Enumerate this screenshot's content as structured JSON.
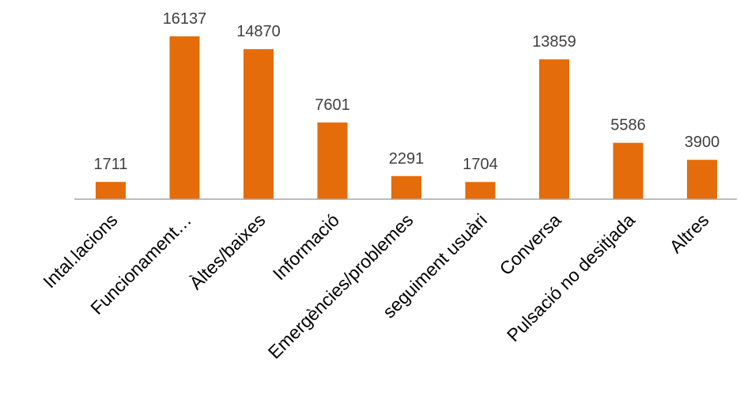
{
  "chart_data": {
    "type": "bar",
    "title": "",
    "xlabel": "",
    "ylabel": "",
    "categories": [
      "Intal.lacions",
      "Funcionament…",
      "Àltes/baixes",
      "Informació",
      "Emergències/problemes",
      "seguiment usuàri",
      "Conversa",
      "Pulsació no desitjada",
      "Altres"
    ],
    "values": [
      1711,
      16137,
      14870,
      7601,
      2291,
      1704,
      13859,
      5586,
      3900
    ],
    "value_labels": [
      "1711",
      "16137",
      "14870",
      "7601",
      "2291",
      "1704",
      "13859",
      "5586",
      "3900"
    ],
    "ylim": [
      0,
      18000
    ],
    "grid": false,
    "legend": "none",
    "bar_color": "#E46C0A",
    "axis_color": "#A6A6A6",
    "value_label_color": "#404040"
  }
}
